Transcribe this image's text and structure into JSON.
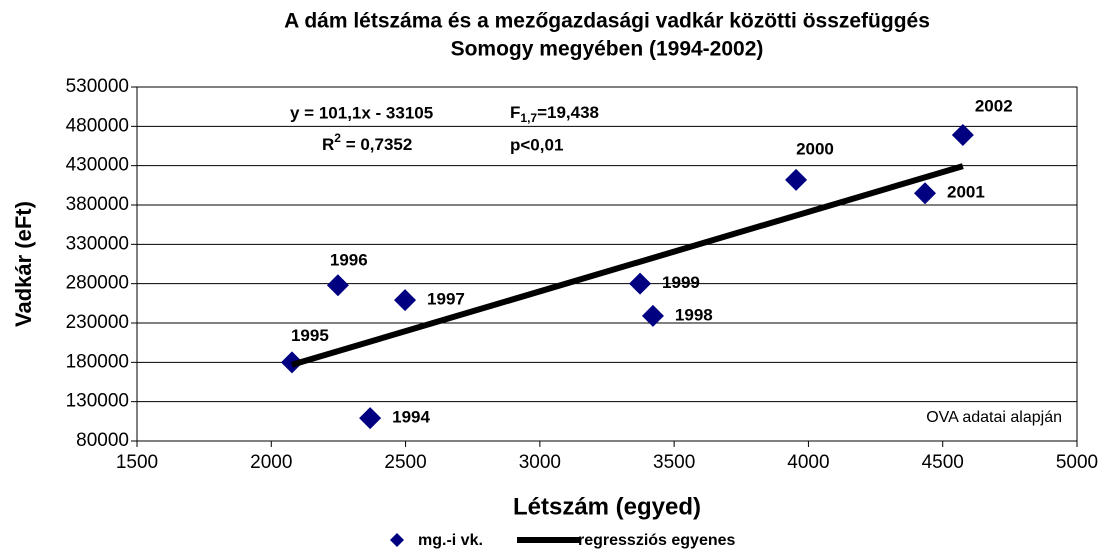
{
  "chart_data": {
    "type": "scatter",
    "title": [
      "A dám létszáma és a mezőgazdasági vadkár közötti összefüggés",
      "Somogy megyében (1994-2002)"
    ],
    "x_label": "Létszám (egyed)",
    "y_label": "Vadkár (eFt)",
    "series": [
      {
        "name": "mg.-i vk.",
        "color": "#000080",
        "kind": "points",
        "x": [
          2368,
          2077,
          2248,
          2498,
          3421,
          3373,
          3954,
          4434,
          4575
        ],
        "values": [
          109000,
          180000,
          278000,
          259000,
          239000,
          280000,
          412000,
          395000,
          469000
        ],
        "labels": [
          "1994",
          "1995",
          "1996",
          "1997",
          "1998",
          "1999",
          "2000",
          "2001",
          "2002"
        ]
      },
      {
        "name": "regressziós egyenes",
        "color": "#000000",
        "kind": "line",
        "x": [
          2077,
          4575
        ],
        "values": [
          176880,
          429427
        ]
      }
    ],
    "annotations": {
      "equation": "y = 101,1x - 33105",
      "r2": {
        "base": "R",
        "sup": "2",
        "rest": " = 0,7352"
      },
      "f": {
        "base": "F",
        "sub": "1,7",
        "rest": "=19,438"
      },
      "p": "p<0,01",
      "source": "OVA adatai alapján"
    },
    "xlim": [
      1500,
      5000
    ],
    "xticks": [
      1500,
      2000,
      2500,
      3000,
      3500,
      4000,
      4500,
      5000
    ],
    "ylim": [
      80000,
      530000
    ],
    "yticks": [
      80000,
      130000,
      180000,
      230000,
      280000,
      330000,
      380000,
      430000,
      480000,
      530000
    ],
    "grid": true,
    "legend": "bottom"
  }
}
